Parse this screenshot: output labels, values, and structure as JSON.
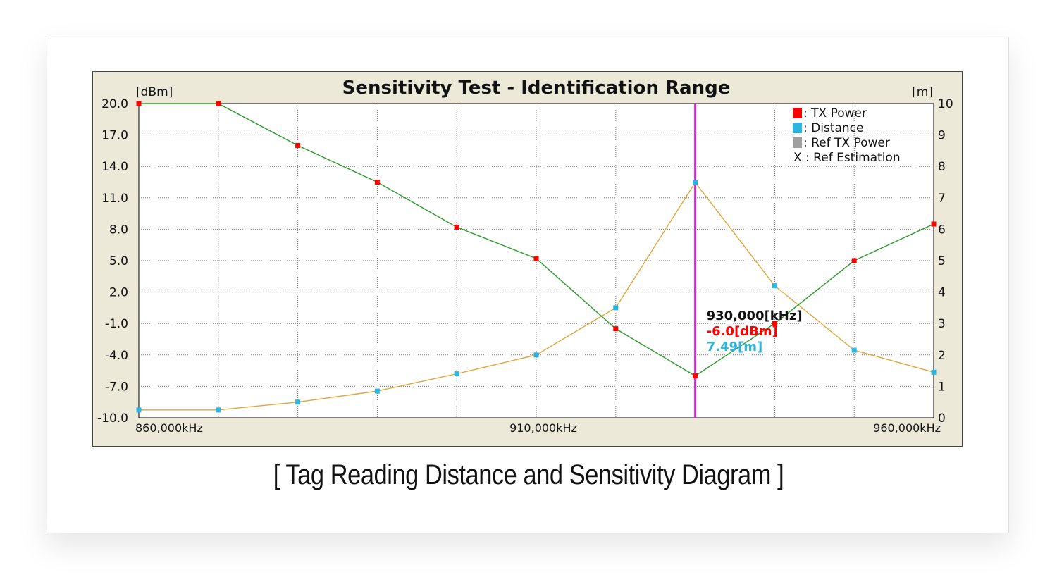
{
  "caption": "[ Tag Reading Distance and Sensitivity Diagram ]",
  "colors": {
    "tx_power_line": "#2b9a2b",
    "tx_power_marker": "#ff0000",
    "distance_line": "#e0a63a",
    "distance_marker": "#2ab4e0",
    "ref_tx_power": "#a0a0a0",
    "cursor": "#dd22dd",
    "frame_bg": "#ece9d8",
    "plot_bg": "#ffffff"
  },
  "chart_data": {
    "type": "line",
    "title": "Sensitivity Test - Identification Range",
    "ylabel": "[dBm]",
    "y2label": "[m]",
    "xlabel": "",
    "ylim": [
      -10,
      20
    ],
    "y2lim": [
      0,
      10
    ],
    "xlim": [
      860000,
      960000
    ],
    "x_tick_labels": [
      "860,000kHz",
      "910,000kHz",
      "960,000kHz"
    ],
    "y_tick_labels": [
      "20.0",
      "17.0",
      "14.0",
      "11.0",
      "8.0",
      "5.0",
      "2.0",
      "-1.0",
      "-4.0",
      "-7.0",
      "-10.0"
    ],
    "y2_tick_labels": [
      "10",
      "9",
      "8",
      "7",
      "6",
      "5",
      "4",
      "3",
      "2",
      "1",
      "0"
    ],
    "grid": true,
    "legend_position": "top-right",
    "legend": [
      {
        "marker": ": ",
        "label": "TX Power"
      },
      {
        "marker": ": ",
        "label": "Distance"
      },
      {
        "marker": ": ",
        "label": "Ref TX Power"
      },
      {
        "marker": "X : ",
        "label": "Ref Estimation"
      }
    ],
    "x": [
      860000,
      870000,
      880000,
      890000,
      900000,
      910000,
      920000,
      930000,
      940000,
      950000,
      960000
    ],
    "series": [
      {
        "name": "TX Power",
        "axis": "left",
        "values": [
          20.0,
          20.0,
          16.0,
          12.5,
          8.2,
          5.2,
          -1.5,
          -6.0,
          -1.0,
          5.0,
          8.5
        ]
      },
      {
        "name": "Distance",
        "axis": "right",
        "values": [
          0.25,
          0.25,
          0.5,
          0.85,
          1.4,
          2.0,
          3.5,
          7.49,
          4.2,
          2.15,
          1.45
        ]
      }
    ],
    "cursor": {
      "x": 930000,
      "freq_label": "930,000[kHz]",
      "power_label": "-6.0[dBm]",
      "distance_label": "7.49[m]"
    }
  }
}
